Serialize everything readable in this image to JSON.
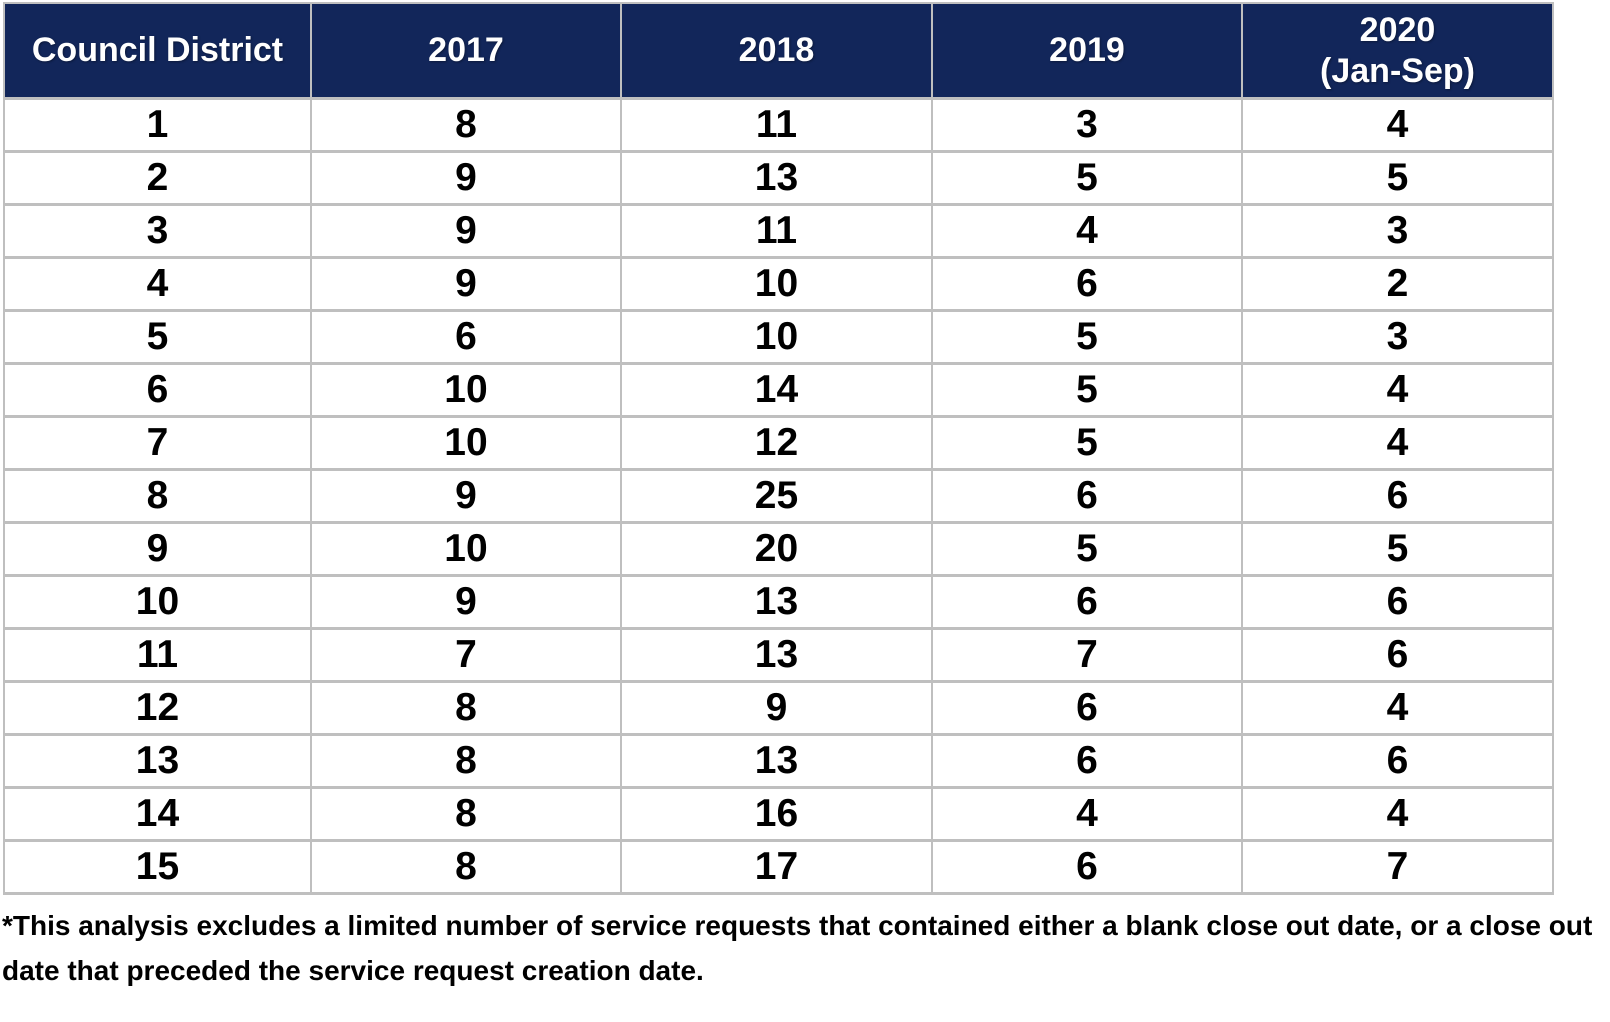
{
  "table": {
    "columns": [
      "Council District",
      "2017",
      "2018",
      "2019",
      "2020\n(Jan-Sep)"
    ],
    "rows": [
      [
        "1",
        "8",
        "11",
        "3",
        "4"
      ],
      [
        "2",
        "9",
        "13",
        "5",
        "5"
      ],
      [
        "3",
        "9",
        "11",
        "4",
        "3"
      ],
      [
        "4",
        "9",
        "10",
        "6",
        "2"
      ],
      [
        "5",
        "6",
        "10",
        "5",
        "3"
      ],
      [
        "6",
        "10",
        "14",
        "5",
        "4"
      ],
      [
        "7",
        "10",
        "12",
        "5",
        "4"
      ],
      [
        "8",
        "9",
        "25",
        "6",
        "6"
      ],
      [
        "9",
        "10",
        "20",
        "5",
        "5"
      ],
      [
        "10",
        "9",
        "13",
        "6",
        "6"
      ],
      [
        "11",
        "7",
        "13",
        "7",
        "6"
      ],
      [
        "12",
        "8",
        "9",
        "6",
        "4"
      ],
      [
        "13",
        "8",
        "13",
        "6",
        "6"
      ],
      [
        "14",
        "8",
        "16",
        "4",
        "4"
      ],
      [
        "15",
        "8",
        "17",
        "6",
        "7"
      ]
    ]
  },
  "footnote": "*This analysis excludes a limited number of service requests that contained either a blank close out date, or a close out date that preceded the service request creation date.",
  "colors": {
    "header_bg": "#12265A",
    "header_text": "#FFFFFF",
    "grid_border": "#BFBFBF",
    "cell_text": "#000000",
    "page_bg": "#FFFFFF"
  }
}
